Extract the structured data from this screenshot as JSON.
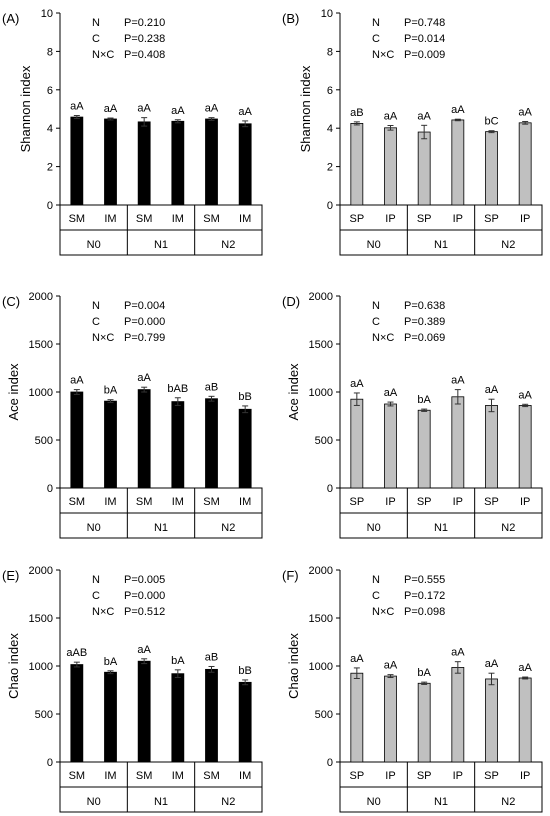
{
  "chart_data": [
    {
      "panel": "(A)",
      "type": "bar",
      "ylabel": "Shannon index",
      "ylim": [
        0,
        10
      ],
      "yticks": [
        0,
        2,
        4,
        6,
        8,
        10
      ],
      "bar_color": "#000000",
      "categories": [
        "SM",
        "IM",
        "SM",
        "IM",
        "SM",
        "IM"
      ],
      "groups": [
        "N0",
        "N1",
        "N2"
      ],
      "values": [
        4.58,
        4.48,
        4.33,
        4.36,
        4.48,
        4.23
      ],
      "errors": [
        0.08,
        0.05,
        0.22,
        0.08,
        0.07,
        0.15
      ],
      "labels": [
        "aA",
        "aA",
        "aA",
        "aA",
        "aA",
        "aA"
      ],
      "stats": [
        [
          "N",
          "P=0.210"
        ],
        [
          "C",
          "P=0.238"
        ],
        [
          "N×C",
          "P=0.408"
        ]
      ]
    },
    {
      "panel": "(B)",
      "type": "bar",
      "ylabel": "Shannon index",
      "ylim": [
        0,
        10
      ],
      "yticks": [
        0,
        2,
        4,
        6,
        8,
        10
      ],
      "bar_color": "#c0c0c0",
      "categories": [
        "SP",
        "IP",
        "SP",
        "IP",
        "SP",
        "IP"
      ],
      "groups": [
        "N0",
        "N1",
        "N2"
      ],
      "values": [
        4.25,
        4.02,
        3.8,
        4.43,
        3.82,
        4.28
      ],
      "errors": [
        0.08,
        0.12,
        0.35,
        0.04,
        0.05,
        0.07
      ],
      "labels": [
        "aB",
        "aA",
        "aA",
        "aA",
        "bC",
        "aA"
      ],
      "stats": [
        [
          "N",
          "P=0.748"
        ],
        [
          "C",
          "P=0.014"
        ],
        [
          "N×C",
          "P=0.009"
        ]
      ]
    },
    {
      "panel": "(C)",
      "type": "bar",
      "ylabel": "Ace index",
      "ylim": [
        0,
        2000
      ],
      "yticks": [
        0,
        500,
        1000,
        1500,
        2000
      ],
      "bar_color": "#000000",
      "categories": [
        "SM",
        "IM",
        "SM",
        "IM",
        "SM",
        "IM"
      ],
      "groups": [
        "N0",
        "N1",
        "N2"
      ],
      "values": [
        1000,
        905,
        1025,
        900,
        930,
        820
      ],
      "errors": [
        25,
        15,
        25,
        40,
        25,
        35
      ],
      "labels": [
        "aA",
        "bA",
        "aA",
        "bAB",
        "aB",
        "bB"
      ],
      "stats": [
        [
          "N",
          "P=0.004"
        ],
        [
          "C",
          "P=0.000"
        ],
        [
          "N×C",
          "P=0.799"
        ]
      ]
    },
    {
      "panel": "(D)",
      "type": "bar",
      "ylabel": "Ace index",
      "ylim": [
        0,
        2000
      ],
      "yticks": [
        0,
        500,
        1000,
        1500,
        2000
      ],
      "bar_color": "#c0c0c0",
      "categories": [
        "SP",
        "IP",
        "SP",
        "IP",
        "SP",
        "IP"
      ],
      "groups": [
        "N0",
        "N1",
        "N2"
      ],
      "values": [
        925,
        875,
        810,
        950,
        860,
        860
      ],
      "errors": [
        65,
        20,
        12,
        75,
        65,
        12
      ],
      "labels": [
        "aA",
        "aA",
        "bA",
        "aA",
        "aA",
        "aA"
      ],
      "stats": [
        [
          "N",
          "P=0.638"
        ],
        [
          "C",
          "P=0.389"
        ],
        [
          "N×C",
          "P=0.069"
        ]
      ]
    },
    {
      "panel": "(E)",
      "type": "bar",
      "ylabel": "Chao index",
      "ylim": [
        0,
        2000
      ],
      "yticks": [
        0,
        500,
        1000,
        1500,
        2000
      ],
      "bar_color": "#000000",
      "categories": [
        "SM",
        "IM",
        "SM",
        "IM",
        "SM",
        "IM"
      ],
      "groups": [
        "N0",
        "N1",
        "N2"
      ],
      "values": [
        1015,
        935,
        1050,
        920,
        965,
        830
      ],
      "errors": [
        25,
        15,
        25,
        40,
        30,
        25
      ],
      "labels": [
        "aAB",
        "bA",
        "aA",
        "bA",
        "aB",
        "bB"
      ],
      "stats": [
        [
          "N",
          "P=0.005"
        ],
        [
          "C",
          "P=0.000"
        ],
        [
          "N×C",
          "P=0.512"
        ]
      ]
    },
    {
      "panel": "(F)",
      "type": "bar",
      "ylabel": "Chao index",
      "ylim": [
        0,
        2000
      ],
      "yticks": [
        0,
        500,
        1000,
        1500,
        2000
      ],
      "bar_color": "#c0c0c0",
      "categories": [
        "SP",
        "IP",
        "SP",
        "IP",
        "SP",
        "IP"
      ],
      "groups": [
        "N0",
        "N1",
        "N2"
      ],
      "values": [
        925,
        895,
        820,
        985,
        865,
        875
      ],
      "errors": [
        55,
        15,
        12,
        60,
        60,
        10
      ],
      "labels": [
        "aA",
        "aA",
        "bA",
        "aA",
        "aA",
        "aA"
      ],
      "stats": [
        [
          "N",
          "P=0.555"
        ],
        [
          "C",
          "P=0.172"
        ],
        [
          "N×C",
          "P=0.098"
        ]
      ]
    }
  ]
}
